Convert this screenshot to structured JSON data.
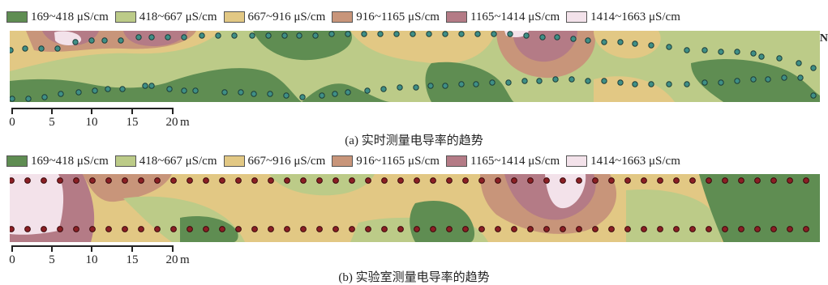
{
  "legend": [
    {
      "label": "169~418 μS/cm",
      "color": "#5f8d52"
    },
    {
      "label": "418~667 μS/cm",
      "color": "#bccb88"
    },
    {
      "label": "667~916 μS/cm",
      "color": "#e2c884"
    },
    {
      "label": "916~1165 μS/cm",
      "color": "#c8957a"
    },
    {
      "label": "1165~1414 μS/cm",
      "color": "#b47b86"
    },
    {
      "label": "1414~1663 μS/cm",
      "color": "#f3e2ea"
    }
  ],
  "panel_a": {
    "caption": "(a) 实时测量电导率的趋势",
    "point_color": "#3f8f86",
    "north_label": "N"
  },
  "panel_b": {
    "caption": "(b) 实验室测量电导率的趋势",
    "point_color": "#8b1f24"
  },
  "scale": {
    "ticks": [
      "0",
      "5",
      "10",
      "15",
      "20"
    ],
    "unit": "m"
  }
}
